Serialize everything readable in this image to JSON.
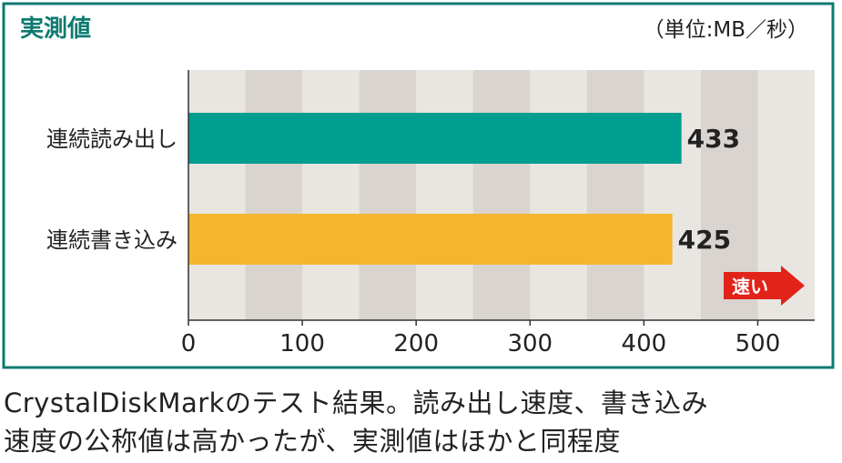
{
  "chart_data": {
    "type": "bar",
    "orientation": "horizontal",
    "title": "実測値",
    "unit_label": "（単位:MB／秒）",
    "categories": [
      "連続読み出し",
      "連続書き込み"
    ],
    "values": [
      433,
      425
    ],
    "colors": [
      "#009e8e",
      "#f5b52f"
    ],
    "xlim": [
      0,
      550
    ],
    "xticks": [
      0,
      100,
      200,
      300,
      400,
      500
    ],
    "annotation": "速い"
  },
  "caption": [
    "CrystalDiskMarkのテスト結果。読み出し速度、書き込み",
    "速度の公称値は高かったが、実測値はほかと同程度"
  ]
}
